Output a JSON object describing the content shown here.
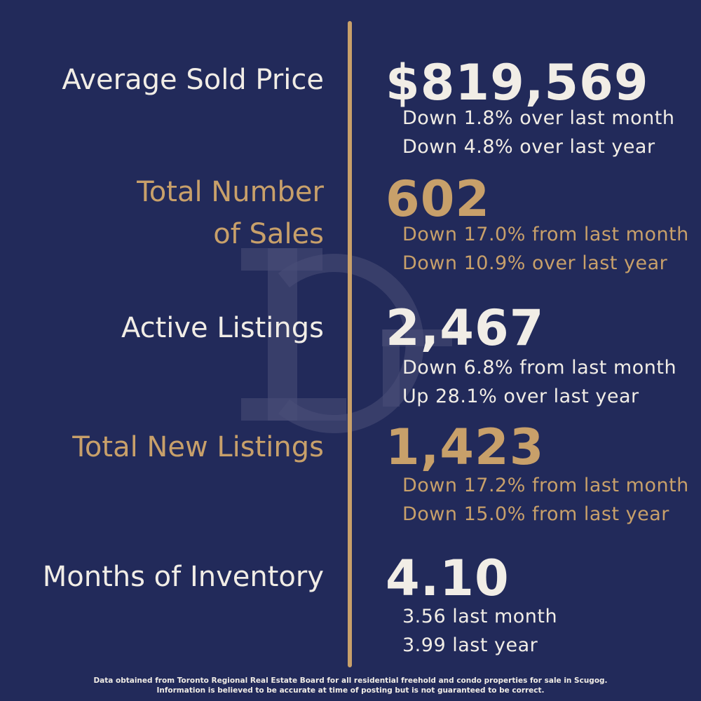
{
  "colors": {
    "background": "#222a5a",
    "cream": "#f1ede6",
    "gold": "#c8a06a"
  },
  "stats": [
    {
      "label": "Average Sold Price",
      "value": "$819,569",
      "details": [
        "Down 1.8% over last month",
        "Down 4.8% over last year"
      ]
    },
    {
      "label_lines": [
        "Total Number",
        "of Sales"
      ],
      "value": "602",
      "details": [
        "Down 17.0% from last month",
        "Down 10.9% over last year"
      ]
    },
    {
      "label": "Active Listings",
      "value": "2,467",
      "details": [
        "Down 6.8% from last month",
        "Up 28.1% over last year"
      ]
    },
    {
      "label": "Total New Listings",
      "value": "1,423",
      "details": [
        "Down 17.2% from last month",
        "Down 15.0% from last year"
      ]
    },
    {
      "label": "Months of Inventory",
      "value": "4.10",
      "details": [
        "3.56 last month",
        "3.99 last year"
      ]
    }
  ],
  "footer": {
    "line1": "Data obtained from Toronto Regional Real Estate Board for all residential freehold and condo properties for sale in Scugog.",
    "line2": "Information is believed to be accurate at time of posting but is not guaranteed to be correct."
  }
}
